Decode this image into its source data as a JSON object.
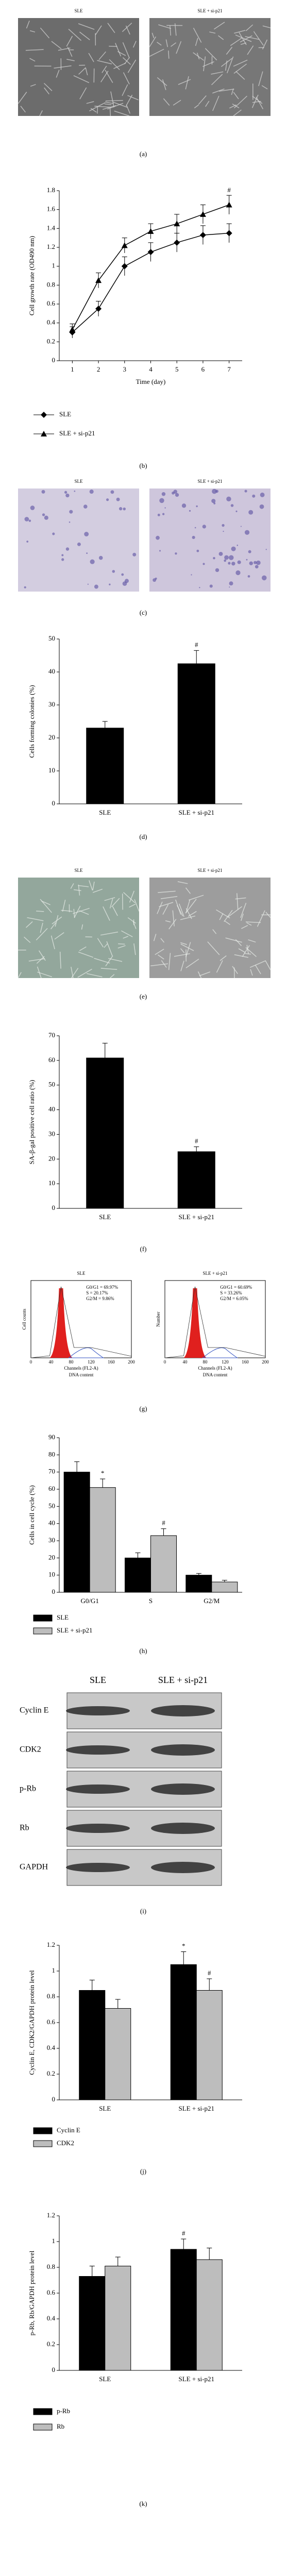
{
  "micrographs": [
    {
      "captions": [
        "SLE",
        "SLE + si-p21"
      ],
      "panel_label": "(a)"
    },
    {
      "captions": [
        "SLE",
        "SLE + si-p21"
      ],
      "panel_label": "(c)"
    },
    {
      "captions": [
        "SLE",
        "SLE + si-p21"
      ],
      "panel_label": "(e)"
    }
  ],
  "flow_cytometry": {
    "panel_label": "(g)",
    "plots": [
      {
        "title": "SLE",
        "stats": [
          "G0/G1 = 69.97%",
          "S = 20.17%",
          "G2/M = 9.86%"
        ],
        "y_label": "Cell counts",
        "x_label": "Channels (FL2-A)",
        "caption": "DNA content",
        "xtick_labels": [
          0,
          40,
          80,
          120,
          160,
          200
        ]
      },
      {
        "title": "SLE + si-p21",
        "stats": [
          "G0/G1 = 60.69%",
          "S = 33.26%",
          "G2/M = 6.05%"
        ],
        "y_label": "Number",
        "x_label": "Channels (FL2-A)",
        "caption": "DNA content",
        "xtick_labels": [
          0,
          40,
          80,
          120,
          160,
          200
        ]
      }
    ]
  },
  "western_blot": {
    "panel_label": "(i)",
    "columns": [
      "SLE",
      "SLE + si-p21"
    ],
    "rows": [
      "Cyclin E",
      "CDK2",
      "p-Rb",
      "Rb",
      "GAPDH"
    ]
  },
  "chart_data": [
    {
      "type": "line",
      "panel_label": "(b)",
      "y_label": "Cell growth rate (OD490 nm)",
      "x_label": "Time (day)",
      "x": [
        1,
        2,
        3,
        4,
        5,
        6,
        7
      ],
      "xlim": [
        0.5,
        7.5
      ],
      "xticks": [
        1,
        2,
        3,
        4,
        5,
        6,
        7
      ],
      "ylim": [
        0,
        1.8
      ],
      "yticks": [
        0,
        0.2,
        0.4,
        0.6,
        0.8,
        1,
        1.2,
        1.4,
        1.6,
        1.8
      ],
      "series": [
        {
          "name": "SLE",
          "color": "#000000",
          "marker": "diamond",
          "values": [
            0.3,
            0.55,
            1.0,
            1.15,
            1.25,
            1.33,
            1.35
          ],
          "errors": [
            0.06,
            0.08,
            0.1,
            0.1,
            0.1,
            0.1,
            0.1
          ]
        },
        {
          "name": "SLE + si-p21",
          "color": "#000000",
          "marker": "triangle",
          "values": [
            0.33,
            0.85,
            1.22,
            1.37,
            1.45,
            1.55,
            1.65
          ],
          "errors": [
            0.06,
            0.08,
            0.08,
            0.08,
            0.1,
            0.1,
            0.1
          ]
        }
      ],
      "annotations": [
        {
          "text": "#",
          "series": 1,
          "index": 6
        }
      ]
    },
    {
      "type": "bar",
      "panel_label": "(d)",
      "y_label": "Cells forming colonies (%)",
      "categories": [
        "SLE",
        "SLE + si-p21"
      ],
      "values": [
        23,
        42.5
      ],
      "errors": [
        2,
        4
      ],
      "color": "#000000",
      "ylim": [
        0,
        50
      ],
      "yticks": [
        0,
        10,
        20,
        30,
        40,
        50
      ],
      "annotations": [
        {
          "text": "#",
          "series": 0,
          "index": 1
        }
      ]
    },
    {
      "type": "bar",
      "panel_label": "(f)",
      "y_label": "SA-β-gal positive cell ratio (%)",
      "categories": [
        "SLE",
        "SLE + si-p21"
      ],
      "values": [
        61,
        23
      ],
      "errors": [
        6,
        2
      ],
      "color": "#000000",
      "ylim": [
        0,
        70
      ],
      "yticks": [
        0,
        10,
        20,
        30,
        40,
        50,
        60,
        70
      ],
      "annotations": [
        {
          "text": "#",
          "series": 0,
          "index": 1
        }
      ]
    },
    {
      "type": "bar",
      "panel_label": "(h)",
      "y_label": "Cells in cell cycle (%)",
      "categories": [
        "G0/G1",
        "S",
        "G2/M"
      ],
      "ylim": [
        0,
        90
      ],
      "yticks": [
        0,
        10,
        20,
        30,
        40,
        50,
        60,
        70,
        80,
        90
      ],
      "series": [
        {
          "name": "SLE",
          "color": "#000000",
          "values": [
            70,
            20,
            10
          ],
          "errors": [
            6,
            3,
            1
          ]
        },
        {
          "name": "SLE + si-p21",
          "color": "#bdbdbd",
          "values": [
            61,
            33,
            6
          ],
          "errors": [
            5,
            4,
            1
          ]
        }
      ],
      "annotations": [
        {
          "text": "*",
          "series": 1,
          "index": 0
        },
        {
          "text": "#",
          "series": 1,
          "index": 1
        }
      ]
    },
    {
      "type": "bar",
      "panel_label": "(j)",
      "y_label": "Cyclin E, CDK2/GAPDH protein level",
      "categories": [
        "SLE",
        "SLE + si-p21"
      ],
      "ylim": [
        0,
        1.2
      ],
      "yticks": [
        0,
        0.2,
        0.4,
        0.6,
        0.8,
        1,
        1.2
      ],
      "series": [
        {
          "name": "Cyclin E",
          "color": "#000000",
          "values": [
            0.85,
            1.05
          ],
          "errors": [
            0.08,
            0.1
          ]
        },
        {
          "name": "CDK2",
          "color": "#bdbdbd",
          "values": [
            0.71,
            0.85
          ],
          "errors": [
            0.07,
            0.09
          ]
        }
      ],
      "annotations": [
        {
          "text": "*",
          "series": 0,
          "index": 1
        },
        {
          "text": "#",
          "series": 1,
          "index": 1
        }
      ]
    },
    {
      "type": "bar",
      "panel_label": "(k)",
      "y_label": "p-Rb, Rb/GAPDH protein level",
      "categories": [
        "SLE",
        "SLE + si-p21"
      ],
      "ylim": [
        0,
        1.2
      ],
      "yticks": [
        0,
        0.2,
        0.4,
        0.6,
        0.8,
        1,
        1.2
      ],
      "series": [
        {
          "name": "p-Rb",
          "color": "#000000",
          "values": [
            0.73,
            0.94
          ],
          "errors": [
            0.08,
            0.08
          ]
        },
        {
          "name": "Rb",
          "color": "#bdbdbd",
          "values": [
            0.81,
            0.86
          ],
          "errors": [
            0.07,
            0.09
          ]
        }
      ],
      "annotations": [
        {
          "text": "#",
          "series": 0,
          "index": 1
        }
      ]
    }
  ]
}
